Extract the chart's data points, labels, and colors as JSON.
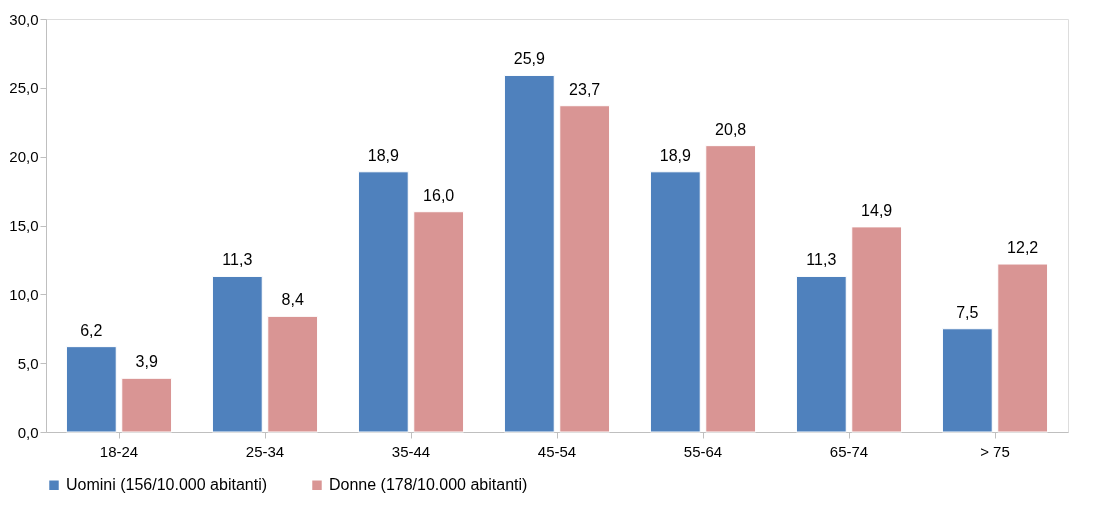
{
  "chart_data": {
    "type": "bar",
    "categories": [
      "18-24",
      "25-34",
      "35-44",
      "45-54",
      "55-64",
      "65-74",
      "> 75"
    ],
    "series": [
      {
        "name": "Uomini (156/10.000 abitanti)",
        "color": "#4f81bd",
        "values": [
          6.2,
          11.3,
          18.9,
          25.9,
          18.9,
          11.3,
          7.5
        ],
        "value_labels": [
          "6,2",
          "11,3",
          "18,9",
          "25,9",
          "18,9",
          "11,3",
          "7,5"
        ]
      },
      {
        "name": "Donne (178/10.000 abitanti)",
        "color": "#d99594",
        "values": [
          3.9,
          8.4,
          16.0,
          23.7,
          20.8,
          14.9,
          12.2
        ],
        "value_labels": [
          "3,9",
          "8,4",
          "16,0",
          "23,7",
          "20,8",
          "14,9",
          "12,2"
        ]
      }
    ],
    "ylim": [
      0,
      30
    ],
    "yticks": [
      {
        "value": 0,
        "label": "0,0"
      },
      {
        "value": 5,
        "label": "5,0"
      },
      {
        "value": 10,
        "label": "10,0"
      },
      {
        "value": 15,
        "label": "15,0"
      },
      {
        "value": 20,
        "label": "20,0"
      },
      {
        "value": 25,
        "label": "25,0"
      },
      {
        "value": 30,
        "label": "30,0"
      }
    ],
    "grid": false,
    "legend": "bottom"
  }
}
